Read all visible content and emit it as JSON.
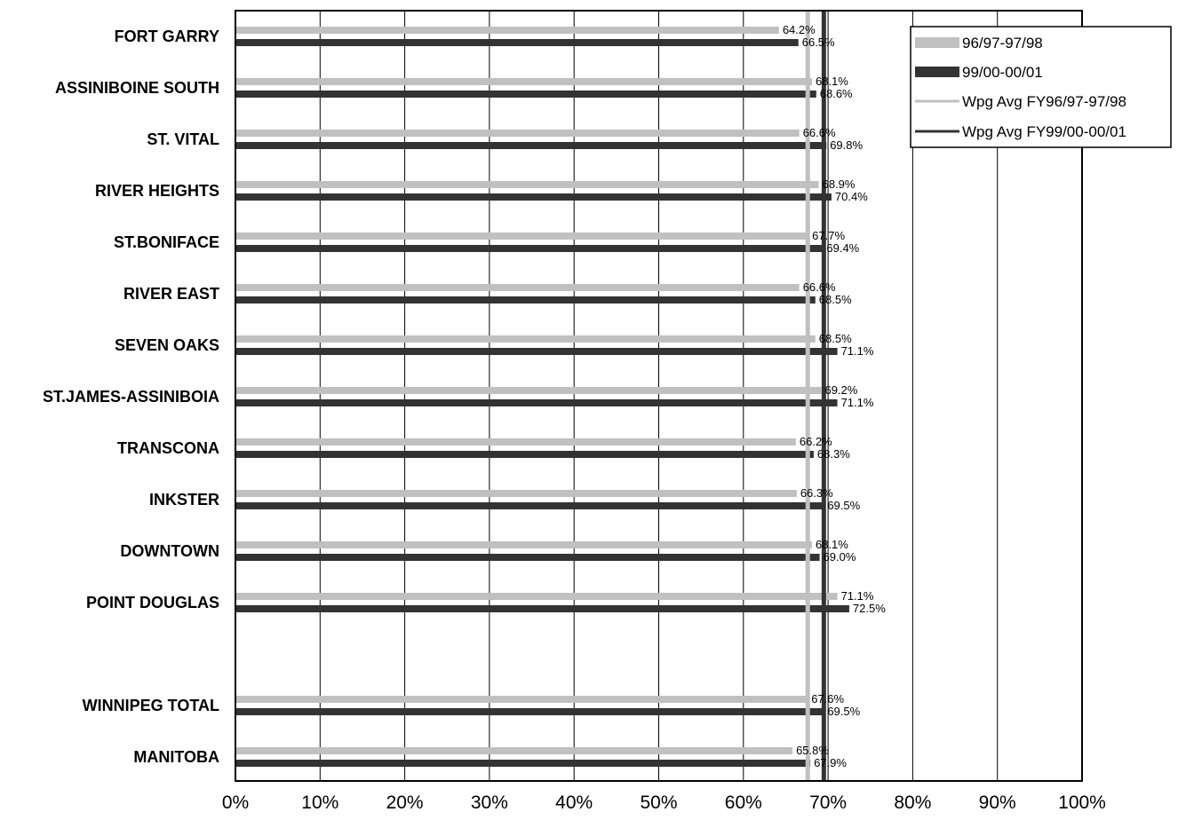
{
  "chart_data": {
    "type": "bar",
    "orientation": "horizontal",
    "categories": [
      "FORT GARRY",
      "ASSINIBOINE SOUTH",
      "ST. VITAL",
      "RIVER HEIGHTS",
      "ST.BONIFACE",
      "RIVER EAST",
      "SEVEN OAKS",
      "ST.JAMES-ASSINIBOIA",
      "TRANSCONA",
      "INKSTER",
      "DOWNTOWN",
      "POINT DOUGLAS",
      "",
      "WINNIPEG TOTAL",
      "MANITOBA"
    ],
    "series": [
      {
        "name": "96/97-97/98",
        "color": "#c0c0c0",
        "values": [
          64.2,
          68.1,
          66.6,
          68.9,
          67.7,
          66.6,
          68.5,
          69.2,
          66.2,
          66.3,
          68.1,
          71.1,
          null,
          67.6,
          65.8
        ],
        "labels": [
          "64.2%",
          "68.1%",
          "66.6%",
          "68.9%",
          "67.7%",
          "66.6%",
          "68.5%",
          "69.2%",
          "66.2%",
          "66.3%",
          "68.1%",
          "71.1%",
          "",
          "67.6%",
          "65.8%"
        ]
      },
      {
        "name": "99/00-00/01",
        "color": "#333333",
        "values": [
          66.5,
          68.6,
          69.8,
          70.4,
          69.4,
          68.5,
          71.1,
          71.1,
          68.3,
          69.5,
          69.0,
          72.5,
          null,
          69.5,
          67.9
        ],
        "labels": [
          "66.5%",
          "68.6%",
          "69.8%",
          "70.4%",
          "69.4%",
          "68.5%",
          "71.1%",
          "71.1%",
          "68.3%",
          "69.5%",
          "69.0%",
          "72.5%",
          "",
          "69.5%",
          "67.9%"
        ]
      }
    ],
    "reference_lines": [
      {
        "name": "Wpg Avg FY96/97-97/98",
        "value": 67.6,
        "color": "#c0c0c0"
      },
      {
        "name": "Wpg Avg FY99/00-00/01",
        "value": 69.5,
        "color": "#333333"
      }
    ],
    "x_ticks": [
      0,
      10,
      20,
      30,
      40,
      50,
      60,
      70,
      80,
      90,
      100
    ],
    "x_tick_labels": [
      "0%",
      "10%",
      "20%",
      "30%",
      "40%",
      "50%",
      "60%",
      "70%",
      "80%",
      "90%",
      "100%"
    ],
    "xlim": [
      0,
      100
    ],
    "grid": "vertical",
    "legend_position": "top-right",
    "title": "",
    "xlabel": "",
    "ylabel": ""
  }
}
